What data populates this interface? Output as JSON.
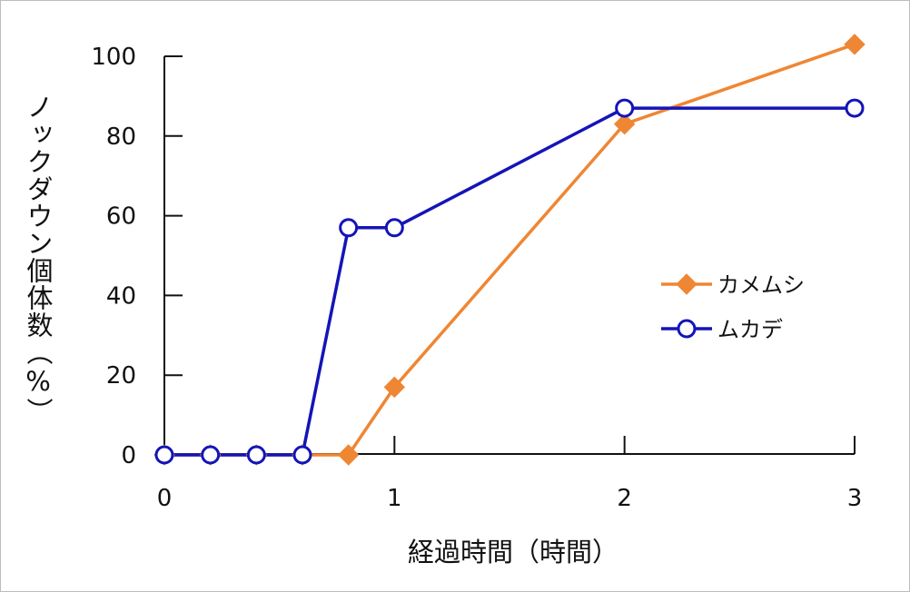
{
  "chart_data": {
    "type": "line",
    "title": "",
    "xlabel": "経過時間（時間）",
    "ylabel": "ノックダウン個体数（%）",
    "xlim": [
      0,
      3
    ],
    "ylim": [
      0,
      100
    ],
    "xticks": [
      0,
      1,
      2,
      3
    ],
    "xtick_labels": [
      "0",
      "1",
      "2",
      "3"
    ],
    "yticks": [
      0,
      20,
      40,
      60,
      80,
      100
    ],
    "ytick_labels": [
      "0",
      "20",
      "40",
      "60",
      "80",
      "100"
    ],
    "grid": false,
    "legend_position": "right",
    "series": [
      {
        "name": "カメムシ",
        "color": "#ef8633",
        "marker": "diamond",
        "x": [
          0,
          0.2,
          0.4,
          0.6,
          0.8,
          1,
          2,
          3
        ],
        "y": [
          0,
          0,
          0,
          0,
          0,
          17,
          83,
          103
        ]
      },
      {
        "name": "ムカデ",
        "color": "#1414b8",
        "marker": "open-circle",
        "x": [
          0,
          0.2,
          0.4,
          0.6,
          0.8,
          1,
          2,
          3
        ],
        "y": [
          0,
          0,
          0,
          0,
          57,
          57,
          87,
          87
        ]
      }
    ]
  }
}
